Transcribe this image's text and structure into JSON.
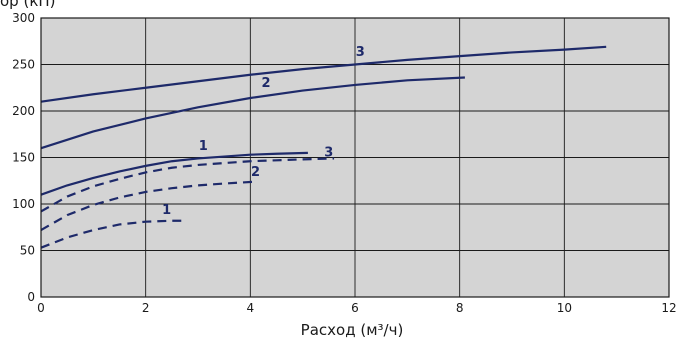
{
  "chart_data": {
    "type": "line",
    "title": "",
    "ylabel_partial": "ор (кП)",
    "xlabel": "Расход (м³/ч)",
    "xlim": [
      0,
      12
    ],
    "ylim": [
      0,
      300
    ],
    "xticks": [
      0,
      2,
      4,
      6,
      8,
      10,
      12
    ],
    "yticks": [
      0,
      50,
      100,
      150,
      200,
      250,
      300
    ],
    "x_tick_labels": [
      "0",
      "2",
      "4",
      "6",
      "8",
      "10",
      "12"
    ],
    "y_tick_labels": [
      "0",
      "50",
      "100",
      "150",
      "200",
      "250",
      "300"
    ],
    "grid": true,
    "background_color": "#d4d4d4",
    "line_color": "#1e2a6a",
    "series": [
      {
        "label": "3",
        "style": "solid",
        "x": [
          0,
          1,
          2,
          3,
          4,
          5,
          6,
          7,
          8,
          9,
          10,
          10.8
        ],
        "y": [
          210,
          218,
          225,
          232,
          239,
          245,
          250,
          255,
          259,
          263,
          266,
          269
        ]
      },
      {
        "label": "2",
        "style": "solid",
        "x": [
          0,
          1,
          2,
          3,
          4,
          5,
          6,
          7,
          8.1
        ],
        "y": [
          160,
          178,
          192,
          204,
          214,
          222,
          228,
          233,
          236
        ]
      },
      {
        "label": "1",
        "style": "solid",
        "x": [
          0,
          0.5,
          1,
          1.5,
          2,
          2.5,
          3,
          3.5,
          4,
          4.5,
          5.1
        ],
        "y": [
          110,
          120,
          128,
          135,
          141,
          146,
          149,
          151,
          153,
          154,
          155
        ]
      },
      {
        "label": "3",
        "style": "dashed",
        "x": [
          0,
          0.5,
          1,
          1.5,
          2,
          2.5,
          3,
          3.5,
          4,
          4.5,
          5,
          5.6
        ],
        "y": [
          92,
          108,
          119,
          127,
          134,
          139,
          142,
          144,
          146,
          147,
          148,
          149
        ]
      },
      {
        "label": "2",
        "style": "dashed",
        "x": [
          0,
          0.5,
          1,
          1.5,
          2,
          2.5,
          3,
          3.5,
          4.1
        ],
        "y": [
          72,
          88,
          99,
          107,
          113,
          117,
          120,
          122,
          124
        ]
      },
      {
        "label": "1",
        "style": "dashed",
        "x": [
          0,
          0.5,
          1,
          1.5,
          2,
          2.5,
          2.7
        ],
        "y": [
          53,
          64,
          72,
          78,
          81,
          82,
          82
        ]
      }
    ],
    "annotations": [
      {
        "text": "3",
        "x": 6.1,
        "y": 259
      },
      {
        "text": "2",
        "x": 4.3,
        "y": 226
      },
      {
        "text": "1",
        "x": 3.1,
        "y": 158
      },
      {
        "text": "3",
        "x": 5.5,
        "y": 151
      },
      {
        "text": "2",
        "x": 4.1,
        "y": 130
      },
      {
        "text": "1",
        "x": 2.4,
        "y": 89
      }
    ]
  }
}
